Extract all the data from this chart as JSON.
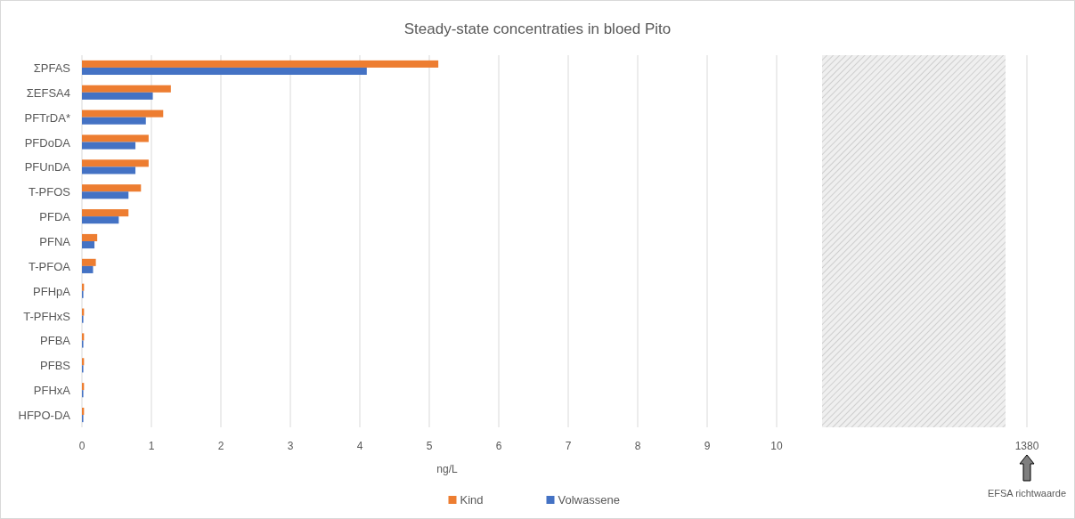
{
  "chart_data": {
    "type": "bar",
    "orientation": "horizontal",
    "title": "Steady-state concentraties in bloed Pito",
    "xlabel": "ng/L",
    "categories": [
      "ΣPFAS",
      "ΣEFSA4",
      "PFTrDA*",
      "PFDoDA",
      "PFUnDA",
      "T-PFOS",
      "PFDA",
      "PFNA",
      "T-PFOA",
      "PFHpA",
      "T-PFHxS",
      "PFBA",
      "PFBS",
      "PFHxA",
      "HFPO-DA"
    ],
    "series": [
      {
        "name": "Kind",
        "color": "#ed7d31",
        "values": [
          5.13,
          1.28,
          1.17,
          0.96,
          0.96,
          0.85,
          0.67,
          0.22,
          0.2,
          0.03,
          0.03,
          0.03,
          0.03,
          0.03,
          0.03
        ]
      },
      {
        "name": "Volwassene",
        "color": "#4472c4",
        "values": [
          4.1,
          1.02,
          0.92,
          0.77,
          0.77,
          0.67,
          0.53,
          0.18,
          0.16,
          0.02,
          0.02,
          0.02,
          0.02,
          0.02,
          0.02
        ]
      }
    ],
    "xlim": [
      0,
      10
    ],
    "xticks": [
      0,
      1,
      2,
      3,
      4,
      5,
      6,
      7,
      8,
      9,
      10
    ],
    "annotations": [
      "1380",
      "EFSA richtwaarde"
    ],
    "grid": "x",
    "legend": "bottom"
  }
}
